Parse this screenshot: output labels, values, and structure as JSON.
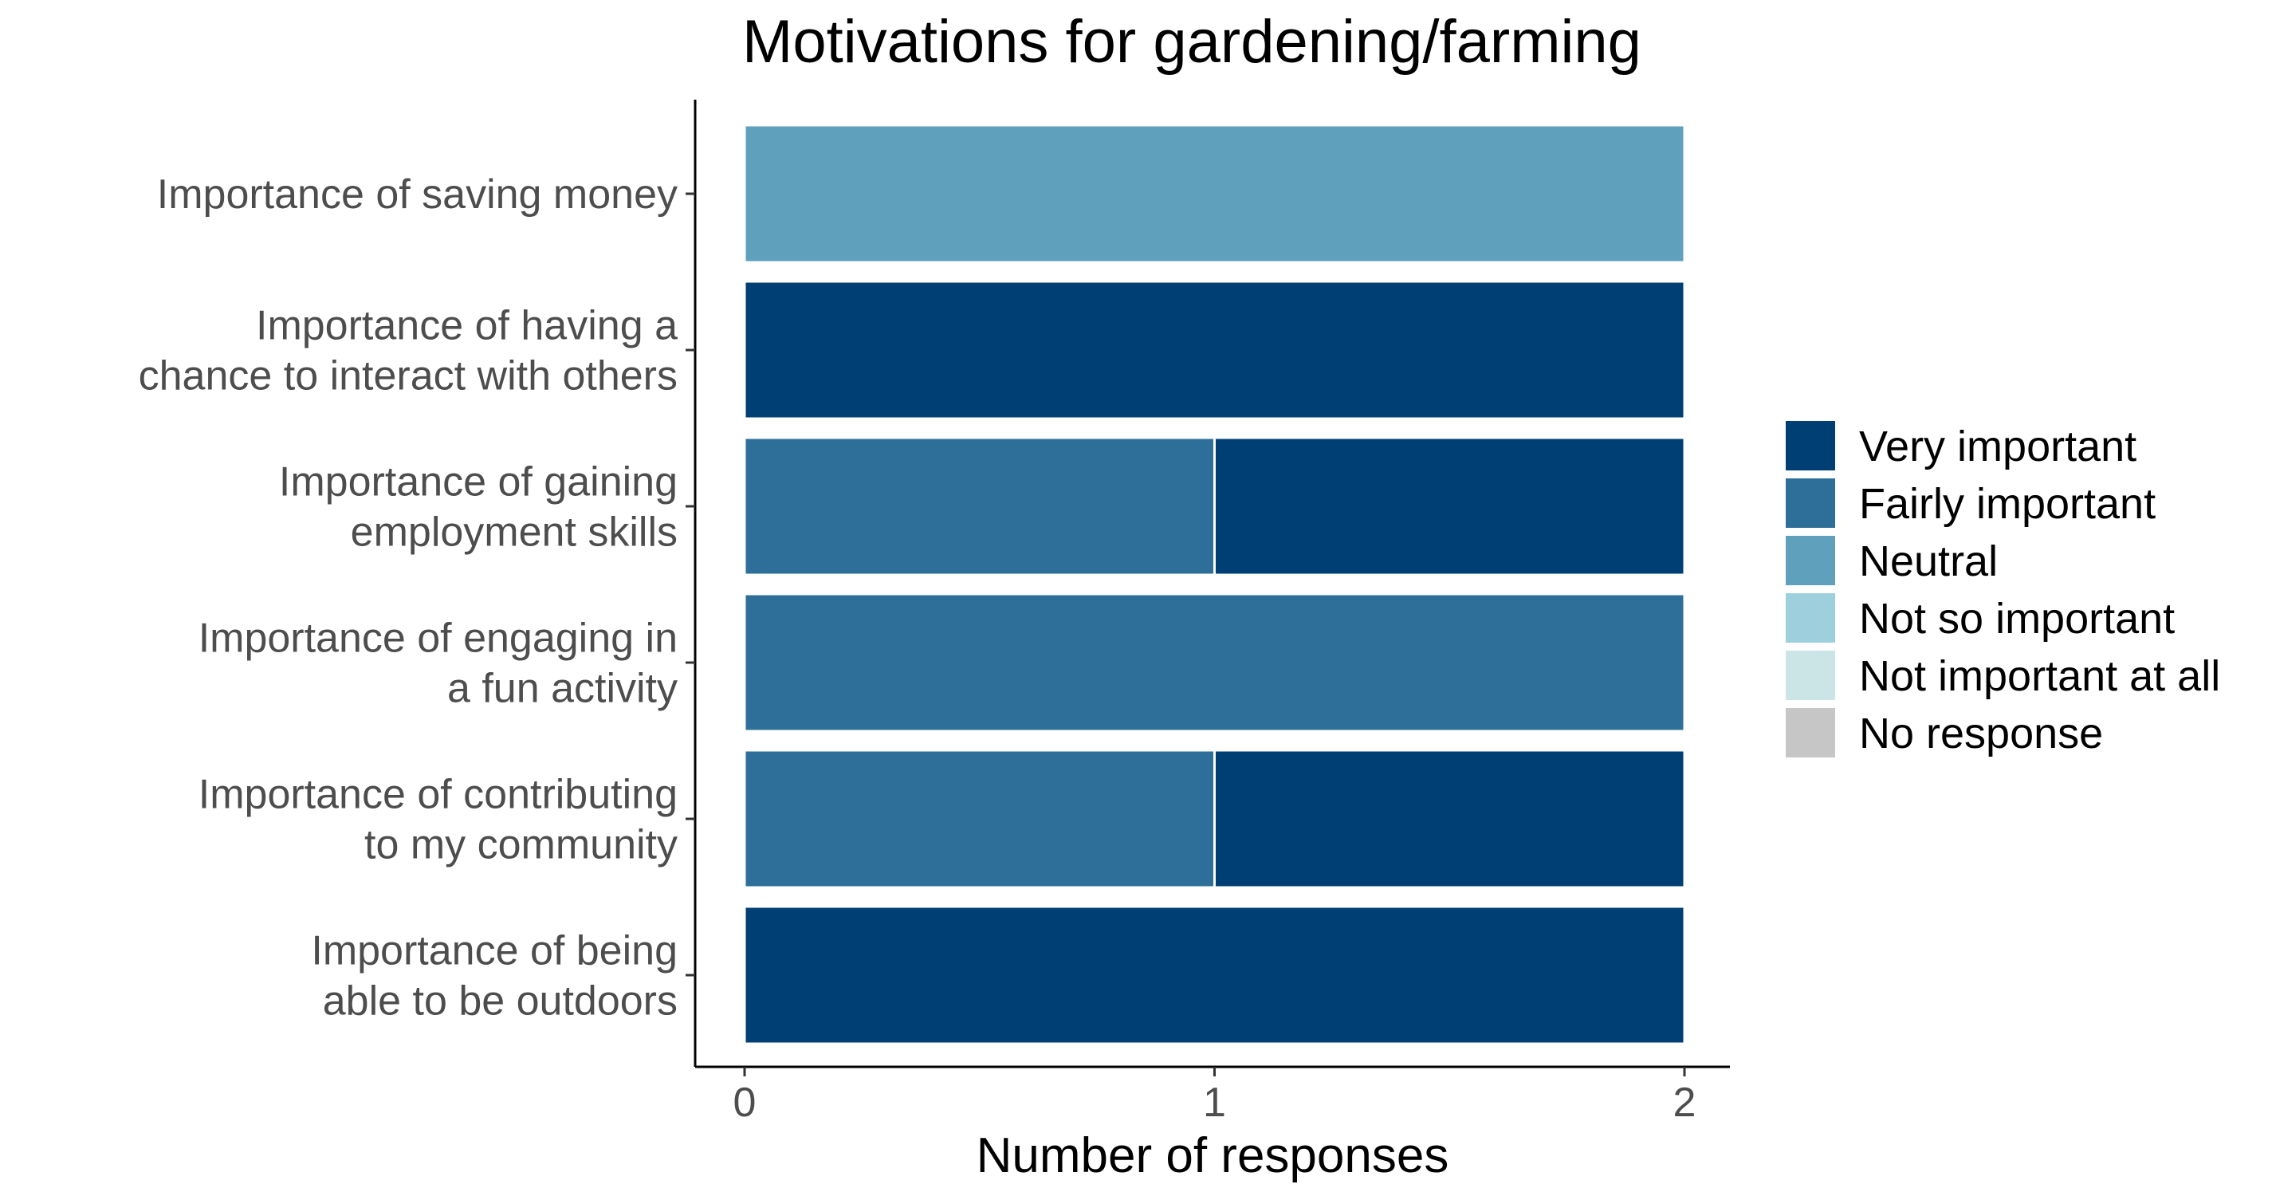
{
  "chart_data": {
    "type": "bar",
    "orientation": "horizontal",
    "stacked": true,
    "title": "Motivations for gardening/farming",
    "xlabel": "Number of responses",
    "ylabel": "",
    "xlim": [
      0,
      2
    ],
    "x_ticks": [
      "0",
      "1",
      "2"
    ],
    "grid": false,
    "legend_position": "right",
    "categories": [
      [
        "Importance of saving money"
      ],
      [
        "Importance of having a",
        "chance to interact with others"
      ],
      [
        "Importance of gaining",
        "employment skills"
      ],
      [
        "Importance of engaging in",
        "a fun activity"
      ],
      [
        "Importance of contributing",
        "to my community"
      ],
      [
        "Importance of being",
        "able to be outdoors"
      ]
    ],
    "series": [
      {
        "name": "Very important",
        "color": "#003f73",
        "values": [
          0,
          2,
          1,
          0,
          1,
          2
        ]
      },
      {
        "name": "Fairly important",
        "color": "#2e6f99",
        "values": [
          0,
          0,
          1,
          2,
          1,
          0
        ]
      },
      {
        "name": "Neutral",
        "color": "#5fa1bc",
        "values": [
          2,
          0,
          0,
          0,
          0,
          0
        ]
      },
      {
        "name": "Not so important",
        "color": "#9dd0dc",
        "values": [
          0,
          0,
          0,
          0,
          0,
          0
        ]
      },
      {
        "name": "Not important at all",
        "color": "#cbe4e5",
        "values": [
          0,
          0,
          0,
          0,
          0,
          0
        ]
      },
      {
        "name": "No response",
        "color": "#c6c6c6",
        "values": [
          0,
          0,
          0,
          0,
          0,
          0
        ]
      }
    ],
    "stack_order_left_to_right": [
      "No response",
      "Not important at all",
      "Not so important",
      "Neutral",
      "Fairly important",
      "Very important"
    ]
  }
}
